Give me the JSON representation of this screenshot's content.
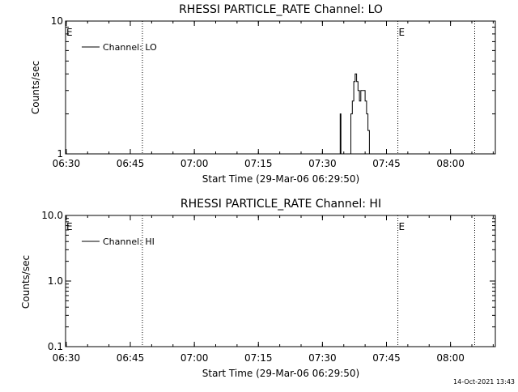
{
  "footer_timestamp": "14-Oct-2021 13:43",
  "chart_data": [
    {
      "type": "line",
      "title": "RHESSI PARTICLE_RATE Channel: LO",
      "xlabel": "Start Time (29-Mar-06 06:29:50)",
      "ylabel": "Counts/sec",
      "yscale": "log",
      "xlim": [
        "06:29:50",
        "08:10:30"
      ],
      "ylim": [
        1,
        10
      ],
      "x_ticks": [
        "06:30",
        "06:45",
        "07:00",
        "07:15",
        "07:30",
        "07:45",
        "08:00"
      ],
      "y_ticks": [
        "1",
        "10"
      ],
      "event_markers": [
        {
          "time": "06:29:50",
          "label": "E"
        },
        {
          "time": "06:47:50",
          "label": ""
        },
        {
          "time": "07:47:40",
          "label": "E"
        },
        {
          "time": "08:05:40",
          "label": ""
        }
      ],
      "legend": {
        "position": "top-left",
        "entries": [
          "Channel: LO"
        ]
      },
      "series": [
        {
          "name": "Channel: LO",
          "points": [
            [
              "07:34:00",
              1
            ],
            [
              "07:34:10",
              2
            ],
            [
              "07:34:20",
              1
            ],
            [
              "07:36:20",
              1
            ],
            [
              "07:36:40",
              2
            ],
            [
              "07:37:00",
              2.5
            ],
            [
              "07:37:20",
              3.5
            ],
            [
              "07:37:40",
              4
            ],
            [
              "07:38:00",
              3.5
            ],
            [
              "07:38:20",
              3
            ],
            [
              "07:38:40",
              2.5
            ],
            [
              "07:39:00",
              3
            ],
            [
              "07:39:20",
              3
            ],
            [
              "07:39:40",
              3
            ],
            [
              "07:40:00",
              2.5
            ],
            [
              "07:40:20",
              2
            ],
            [
              "07:40:40",
              1.5
            ],
            [
              "07:41:00",
              1
            ]
          ]
        }
      ]
    },
    {
      "type": "line",
      "title": "RHESSI PARTICLE_RATE Channel: HI",
      "xlabel": "Start Time (29-Mar-06 06:29:50)",
      "ylabel": "Counts/sec",
      "yscale": "log",
      "xlim": [
        "06:29:50",
        "08:10:30"
      ],
      "ylim": [
        0.1,
        10
      ],
      "x_ticks": [
        "06:30",
        "06:45",
        "07:00",
        "07:15",
        "07:30",
        "07:45",
        "08:00"
      ],
      "y_ticks": [
        "0.1",
        "1.0",
        "10.0"
      ],
      "event_markers": [
        {
          "time": "06:29:50",
          "label": "E"
        },
        {
          "time": "06:47:50",
          "label": ""
        },
        {
          "time": "07:47:40",
          "label": "E"
        },
        {
          "time": "08:05:40",
          "label": ""
        }
      ],
      "legend": {
        "position": "top-left",
        "entries": [
          "Channel: HI"
        ]
      },
      "series": [
        {
          "name": "Channel: HI",
          "points": []
        }
      ]
    }
  ]
}
